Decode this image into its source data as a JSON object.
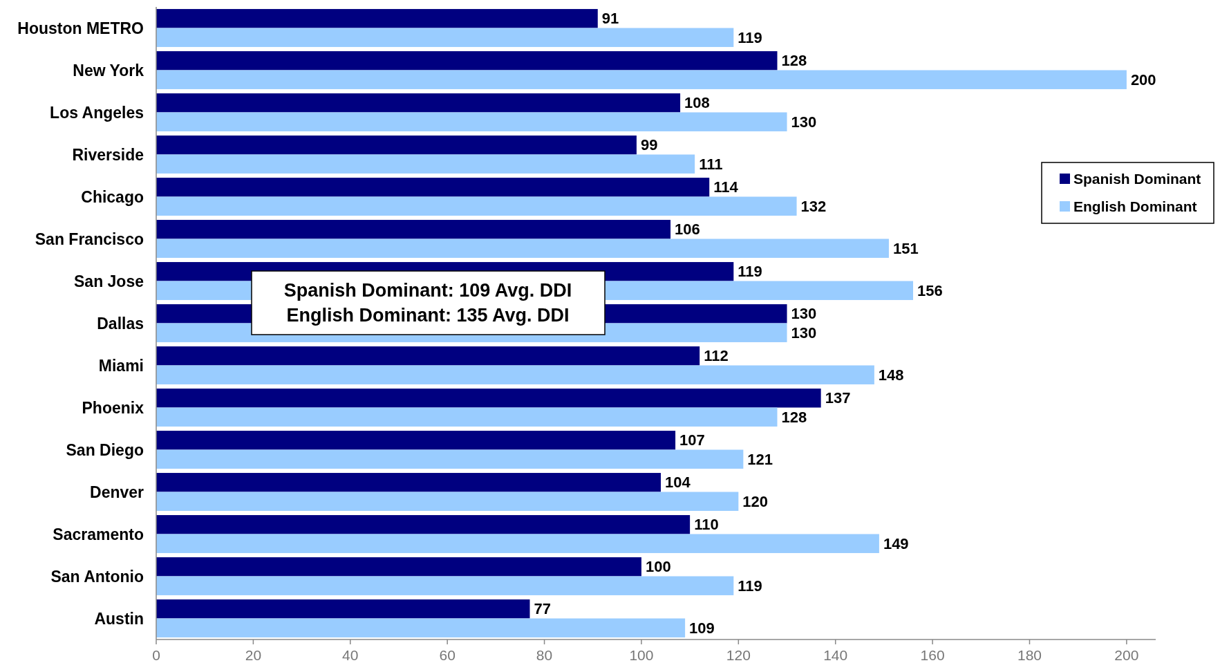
{
  "chart_data": {
    "type": "bar",
    "orientation": "horizontal",
    "categories": [
      "Houston METRO",
      "New York",
      "Los Angeles",
      "Riverside",
      "Chicago",
      "San Francisco",
      "San Jose",
      "Dallas",
      "Miami",
      "Phoenix",
      "San Diego",
      "Denver",
      "Sacramento",
      "San Antonio",
      "Austin"
    ],
    "series": [
      {
        "name": "Spanish Dominant",
        "color": "#000080",
        "values": [
          91,
          128,
          108,
          99,
          114,
          106,
          119,
          130,
          112,
          137,
          107,
          104,
          110,
          100,
          77
        ]
      },
      {
        "name": "English Dominant",
        "color": "#99ccff",
        "values": [
          119,
          200,
          130,
          111,
          132,
          151,
          156,
          130,
          148,
          128,
          121,
          120,
          149,
          119,
          109
        ]
      }
    ],
    "xlim": [
      0,
      206
    ],
    "xticks": [
      0,
      20,
      40,
      60,
      80,
      100,
      120,
      140,
      160,
      180,
      200
    ],
    "data_labels": true,
    "legend": "right",
    "grid": false,
    "annotations": [
      "Spanish Dominant: 109 Avg. DDI",
      "English Dominant: 135 Avg. DDI"
    ]
  }
}
